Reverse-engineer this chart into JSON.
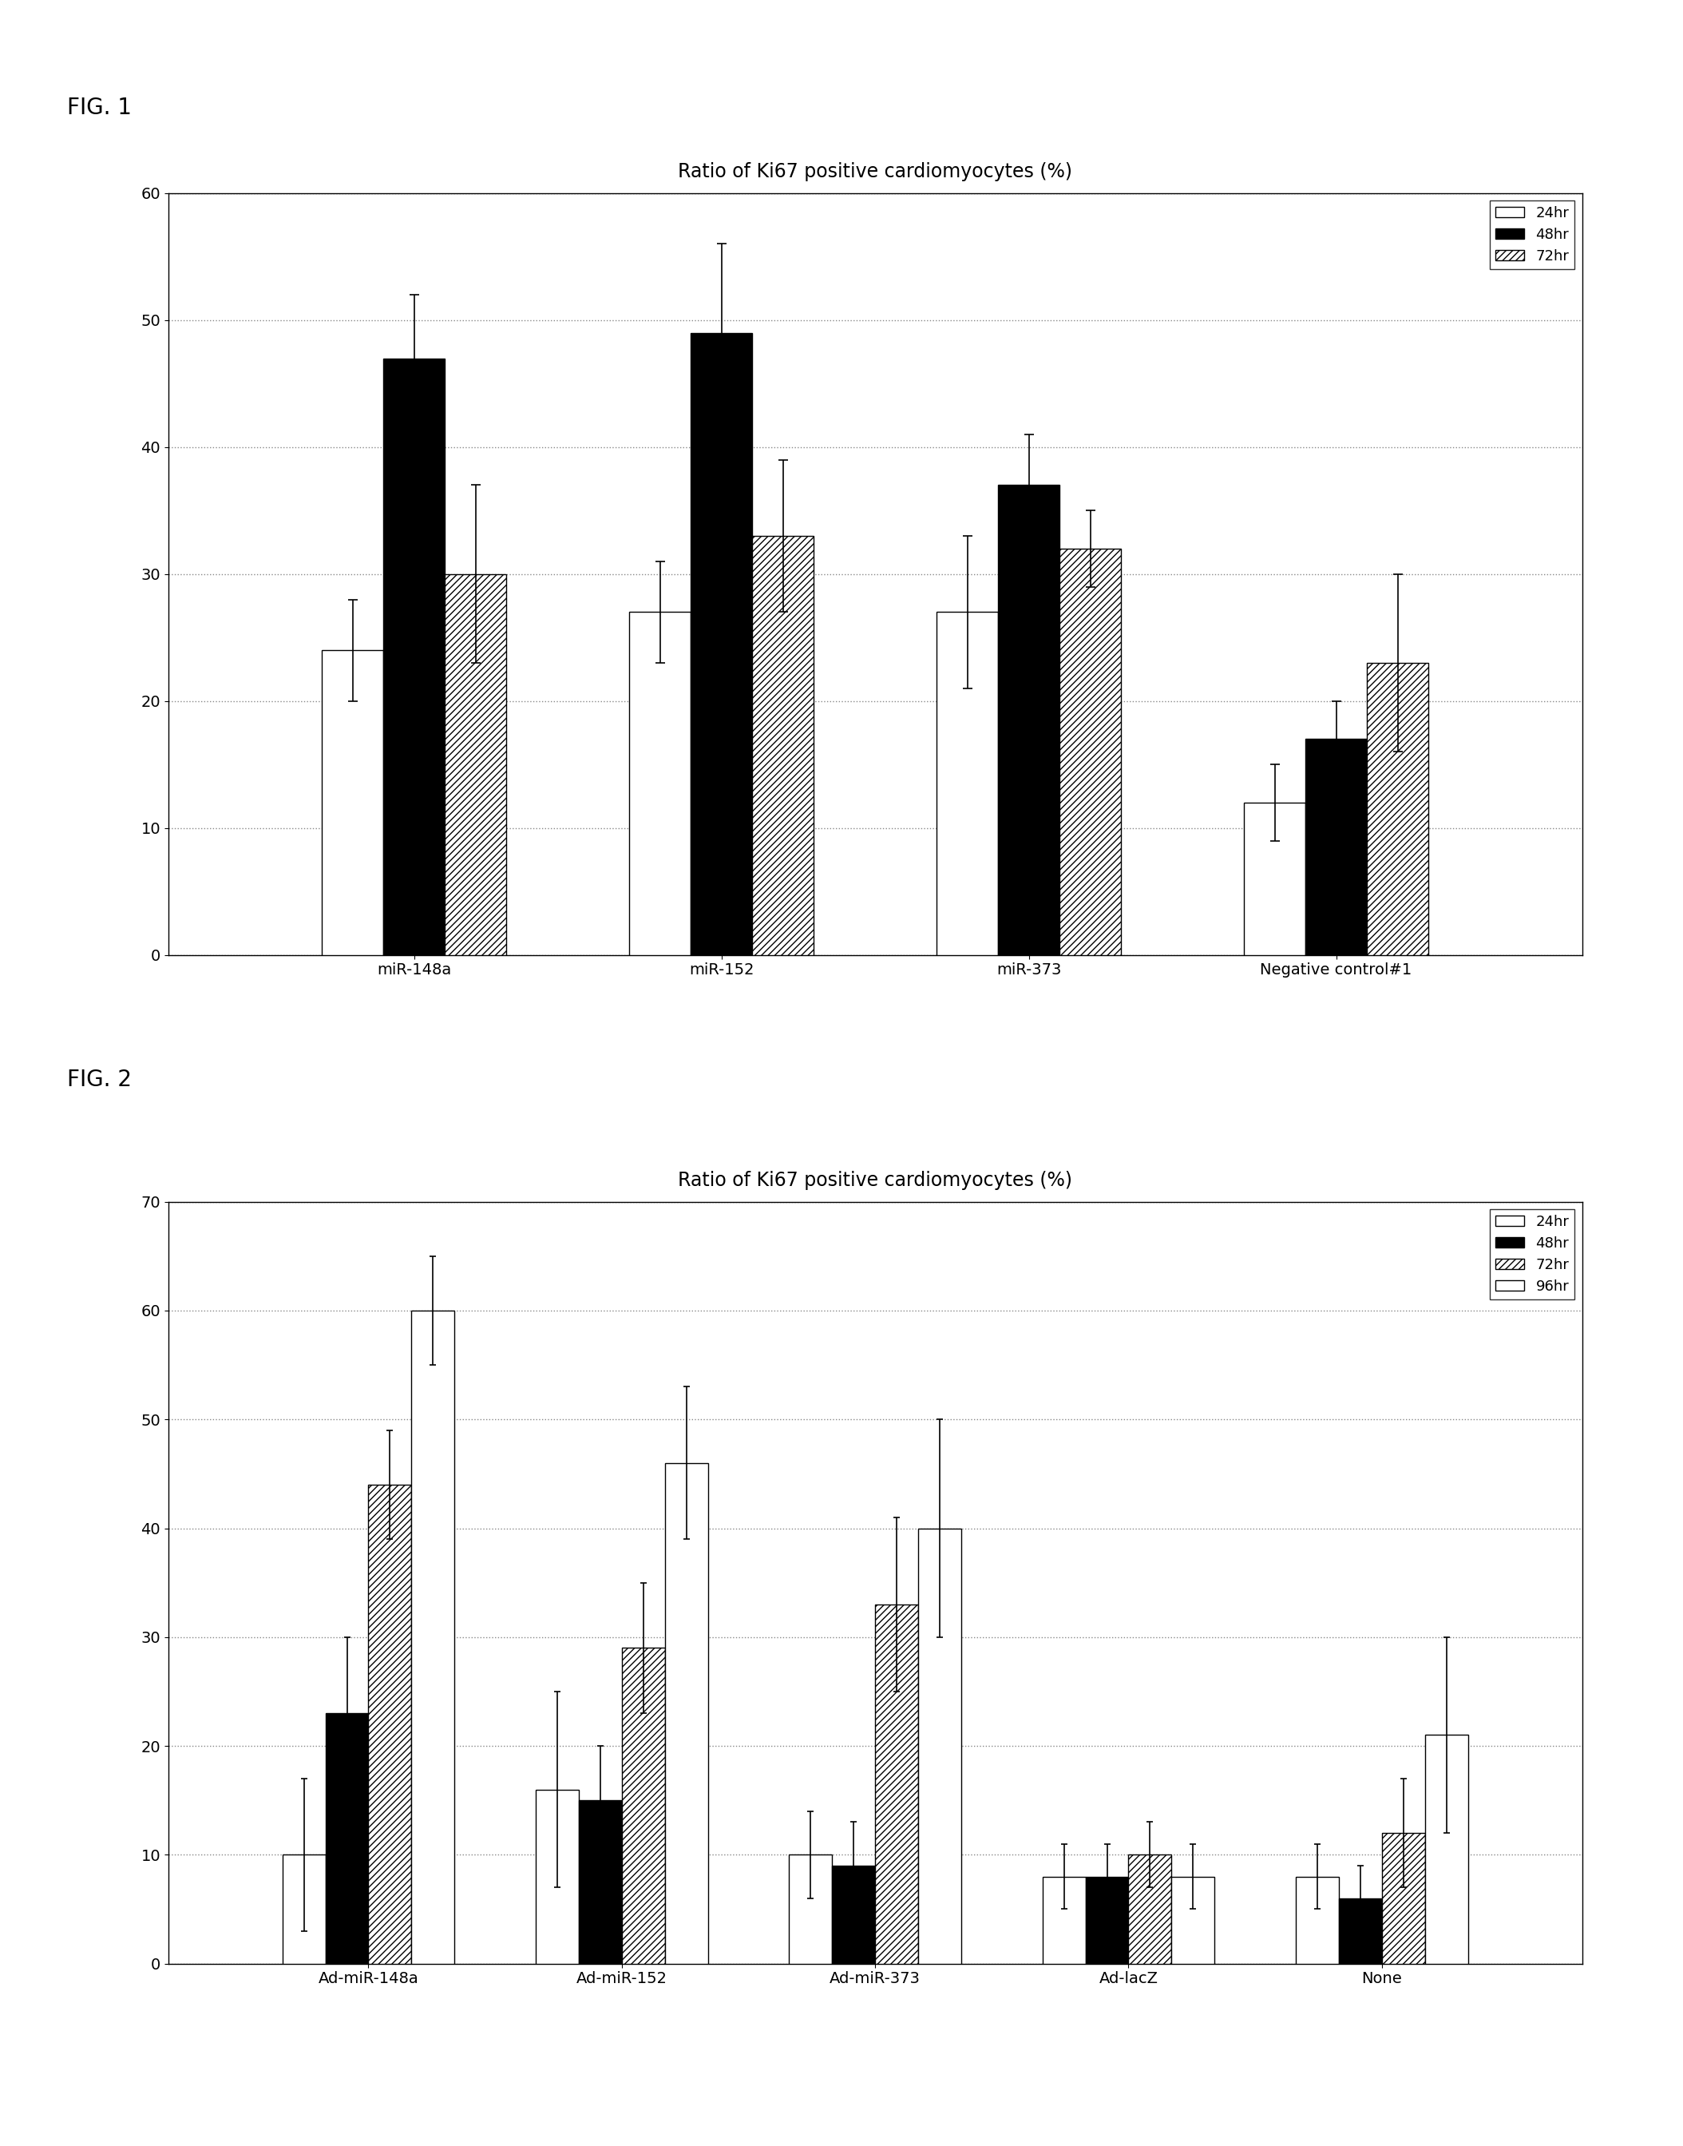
{
  "fig1": {
    "title": "Ratio of Ki67 positive cardiomyocytes (%)",
    "fig_label": "FIG. 1",
    "categories": [
      "miR-148a",
      "miR-152",
      "miR-373",
      "Negative control#1"
    ],
    "legend_labels": [
      "24hr",
      "48hr",
      "72hr"
    ],
    "ylim": [
      0,
      60
    ],
    "yticks": [
      0,
      10,
      20,
      30,
      40,
      50,
      60
    ],
    "values": {
      "24hr": [
        24,
        27,
        27,
        12
      ],
      "48hr": [
        47,
        49,
        37,
        17
      ],
      "72hr": [
        30,
        33,
        32,
        23
      ]
    },
    "errors": {
      "24hr": [
        4,
        4,
        6,
        3
      ],
      "48hr": [
        5,
        7,
        4,
        3
      ],
      "72hr": [
        7,
        6,
        3,
        7
      ]
    }
  },
  "fig2": {
    "title": "Ratio of Ki67 positive cardiomyocytes (%)",
    "fig_label": "FIG. 2",
    "categories": [
      "Ad-miR-148a",
      "Ad-miR-152",
      "Ad-miR-373",
      "Ad-lacZ",
      "None"
    ],
    "legend_labels": [
      "24hr",
      "48hr",
      "72hr",
      "96hr"
    ],
    "ylim": [
      0,
      70
    ],
    "yticks": [
      0,
      10,
      20,
      30,
      40,
      50,
      60,
      70
    ],
    "values": {
      "24hr": [
        10,
        16,
        10,
        8,
        8
      ],
      "48hr": [
        23,
        15,
        9,
        8,
        6
      ],
      "72hr": [
        44,
        29,
        33,
        10,
        12
      ],
      "96hr": [
        60,
        46,
        40,
        8,
        21
      ]
    },
    "errors": {
      "24hr": [
        7,
        9,
        4,
        3,
        3
      ],
      "48hr": [
        7,
        5,
        4,
        3,
        3
      ],
      "72hr": [
        5,
        6,
        8,
        3,
        5
      ],
      "96hr": [
        5,
        7,
        10,
        3,
        9
      ]
    }
  },
  "background_color": "#ffffff",
  "fig_label_fontsize": 20,
  "title_fontsize": 17,
  "tick_fontsize": 14,
  "legend_fontsize": 13,
  "axis_label_fontsize": 14
}
